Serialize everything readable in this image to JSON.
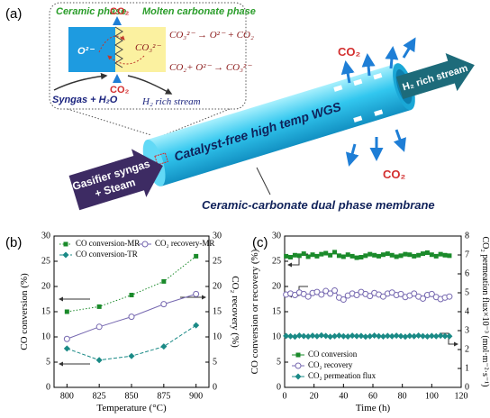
{
  "panel_a": {
    "label": "(a)",
    "ceramic_phase": "Ceramic phase",
    "molten_phase": "Molten carbonate phase",
    "co2_top": "CO₂",
    "o2_ion": "O²⁻",
    "co3_ion": "CO₃²⁻",
    "reaction_1": "CO₃²⁻ → O²⁻ + CO₂",
    "reaction_2": "CO₂+ O²⁻ → CO₃²⁻",
    "syngas_in": "Syngas + H₂O",
    "co2_bottom": "CO₂",
    "h2_out_inset": "H₂ rich stream",
    "tube_label": "Catalyst-free high temp WGS",
    "feed_label": [
      "Gasifier syngas",
      "+ Steam"
    ],
    "h2_stream": "H₂ rich stream",
    "co2_upper": "CO₂",
    "co2_lower": "CO₂",
    "membrane_label": "Ceramic-carbonate  dual phase membrane"
  },
  "chart_data": [
    {
      "type": "line",
      "panel_label": "(b)",
      "xlabel": "Temperature (°C)",
      "ylabel": "CO conversion (%)",
      "y2label": "CO₂ recovery (%)",
      "x": [
        800,
        825,
        850,
        875,
        900
      ],
      "xlim": [
        790,
        910
      ],
      "xticks": [
        800,
        825,
        850,
        875,
        900
      ],
      "ylim": [
        0,
        30
      ],
      "yticks": [
        0,
        5,
        10,
        15,
        20,
        25,
        30
      ],
      "y2lim": [
        0,
        30
      ],
      "y2ticks": [
        0,
        5,
        10,
        15,
        20,
        25,
        30
      ],
      "legend": "upper left",
      "series": [
        {
          "name": "CO conversion-MR",
          "color": "#1a8a2a",
          "marker": "square",
          "line_style": "dotted",
          "values": [
            15,
            16,
            18.3,
            21,
            26
          ]
        },
        {
          "name": "CO conversion-TR",
          "color": "#1a8a86",
          "marker": "diamond",
          "line_style": "dashed",
          "values": [
            7.7,
            5.4,
            6.2,
            8.1,
            12.3
          ]
        },
        {
          "name": "CO₂ recovery-MR",
          "color": "#7668b0",
          "marker": "circle",
          "line_style": "solid",
          "axis": "y2",
          "values": [
            9.6,
            12,
            14,
            16.5,
            18.5
          ]
        }
      ]
    },
    {
      "type": "line",
      "panel_label": "(c)",
      "xlabel": "Time (h)",
      "ylabel": "CO conversion or recovery (%)",
      "y2label": "CO₂ permeation flux×10⁻³ (mol·m⁻²·s⁻¹)",
      "x": [
        1,
        4,
        7,
        10,
        13,
        16,
        19,
        22,
        25,
        28,
        31,
        34,
        37,
        40,
        43,
        46,
        49,
        52,
        55,
        58,
        61,
        64,
        67,
        70,
        73,
        76,
        79,
        82,
        85,
        88,
        91,
        94,
        97,
        100,
        103,
        106,
        109,
        112
      ],
      "xlim": [
        0,
        120
      ],
      "xticks": [
        0,
        20,
        40,
        60,
        80,
        100,
        120
      ],
      "ylim": [
        0,
        30
      ],
      "yticks": [
        0,
        5,
        10,
        15,
        20,
        25,
        30
      ],
      "y2lim": [
        0,
        8
      ],
      "y2ticks": [
        0,
        1,
        2,
        3,
        4,
        5,
        6,
        7,
        8
      ],
      "legend": "lower left",
      "series": [
        {
          "name": "CO conversion",
          "color": "#1a8a2a",
          "marker": "square",
          "line_style": "solid",
          "values": [
            26.0,
            25.8,
            26.2,
            26.1,
            26.5,
            25.9,
            26.3,
            26.0,
            26.4,
            26.6,
            26.2,
            26.8,
            26.1,
            25.9,
            26.3,
            26.0,
            25.7,
            25.8,
            26.1,
            26.4,
            26.2,
            26.0,
            26.3,
            26.5,
            26.2,
            25.9,
            26.1,
            26.4,
            26.3,
            26.0,
            26.2,
            26.5,
            26.7,
            26.3,
            26.0,
            26.4,
            26.2,
            26.1
          ]
        },
        {
          "name": "CO₂ recovery",
          "color": "#7668b0",
          "marker": "circle",
          "line_style": "solid",
          "values": [
            18.4,
            18.6,
            18.3,
            18.8,
            18.5,
            18.0,
            18.7,
            18.9,
            18.4,
            19.1,
            18.6,
            19.2,
            17.8,
            17.4,
            18.2,
            18.6,
            18.3,
            18.9,
            18.5,
            18.1,
            18.7,
            18.4,
            18.0,
            18.6,
            18.8,
            18.3,
            18.5,
            17.9,
            18.2,
            18.6,
            18.0,
            17.6,
            18.3,
            18.5,
            17.9,
            17.5,
            17.8,
            18.0
          ]
        },
        {
          "name": "CO₂ permeation flux",
          "color": "#1a8a86",
          "marker": "diamond",
          "line_style": "solid",
          "axis": "y2",
          "values": [
            2.72,
            2.7,
            2.68,
            2.74,
            2.71,
            2.69,
            2.73,
            2.7,
            2.75,
            2.72,
            2.68,
            2.71,
            2.74,
            2.7,
            2.69,
            2.73,
            2.71,
            2.72,
            2.68,
            2.7,
            2.74,
            2.71,
            2.69,
            2.72,
            2.7,
            2.73,
            2.71,
            2.68,
            2.72,
            2.7,
            2.74,
            2.71,
            2.69,
            2.72,
            2.7,
            2.73,
            2.71,
            2.7
          ]
        }
      ]
    }
  ]
}
